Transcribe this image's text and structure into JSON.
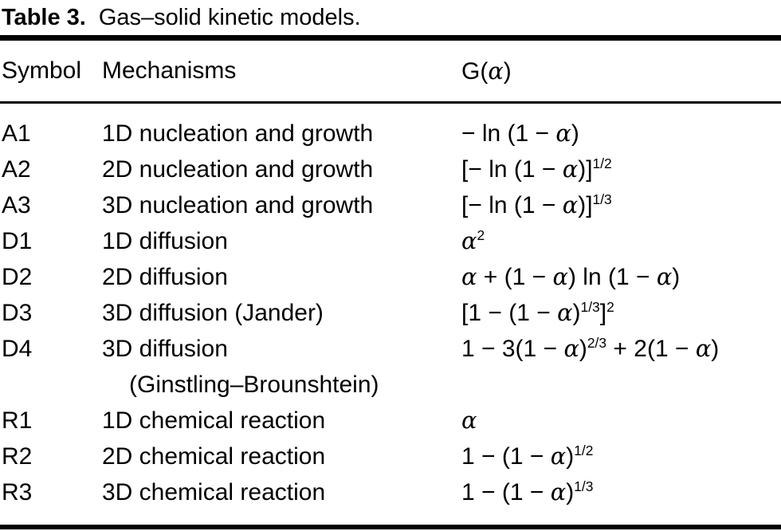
{
  "page": {
    "background": "#ffffff",
    "text_color": "#000000"
  },
  "table": {
    "title": {
      "bold": "Table 3.",
      "rest": "Gas–solid kinetic models."
    },
    "columns": [
      "Symbol",
      "Mechanisms",
      "G(α)"
    ],
    "rows": [
      {
        "symbol": "A1",
        "mechanism": "1D nucleation and growth",
        "formula": "− ln (1 − α)"
      },
      {
        "symbol": "A2",
        "mechanism": "2D nucleation and growth",
        "formula": "[− ln (1 − α)]^{1/2}"
      },
      {
        "symbol": "A3",
        "mechanism": "3D nucleation and growth",
        "formula": "[− ln (1 − α)]^{1/3}"
      },
      {
        "symbol": "D1",
        "mechanism": "1D diffusion",
        "formula": "α^{2}"
      },
      {
        "symbol": "D2",
        "mechanism": "2D diffusion",
        "formula": "α + (1 − α) ln (1 − α)"
      },
      {
        "symbol": "D3",
        "mechanism": "3D diffusion (Jander)",
        "formula": "[1 − (1 − α)^{1/3}]^{2}"
      },
      {
        "symbol": "D4",
        "mechanism": "3D diffusion",
        "mechanism_line2": "(Ginstling–Brounshtein)",
        "formula": "1 − 3(1 − α)^{2/3} + 2(1 − α)"
      },
      {
        "symbol": "R1",
        "mechanism": "1D chemical reaction",
        "formula": "α"
      },
      {
        "symbol": "R2",
        "mechanism": "2D chemical reaction",
        "formula": "1 − (1 − α)^{1/2}"
      },
      {
        "symbol": "R3",
        "mechanism": "3D chemical reaction",
        "formula": "1 − (1 − α)^{1/3}"
      }
    ]
  }
}
